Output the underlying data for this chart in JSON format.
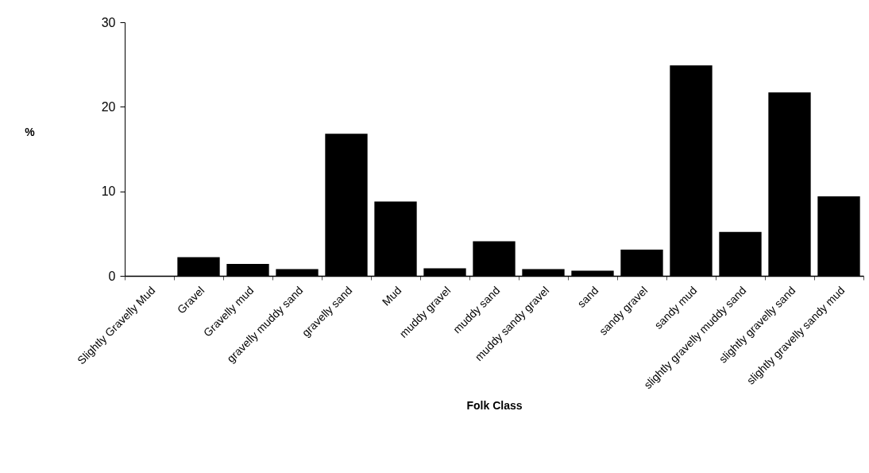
{
  "chart_data": {
    "type": "bar",
    "xlabel": "Folk Class",
    "ylabel": "%",
    "categories": [
      "Slightly Gravelly Mud",
      "Gravel",
      "Gravelly mud",
      "gravelly muddy sand",
      "gravelly sand",
      "Mud",
      "muddy gravel",
      "muddy sand",
      "muddy sandy gravel",
      "sand",
      "sandy gravel",
      "sandy mud",
      "slightly gravelly muddy sand",
      "slightly gravelly sand",
      "slightly gravelly sandy mud"
    ],
    "values": [
      0,
      2.2,
      1.4,
      0.8,
      16.8,
      8.8,
      0.9,
      4.1,
      0.8,
      0.6,
      3.1,
      24.9,
      5.2,
      21.7,
      9.4
    ],
    "color": "#000000",
    "ylim": [
      0,
      30
    ],
    "yticks": [
      0,
      10,
      20,
      30
    ],
    "grid": false
  }
}
